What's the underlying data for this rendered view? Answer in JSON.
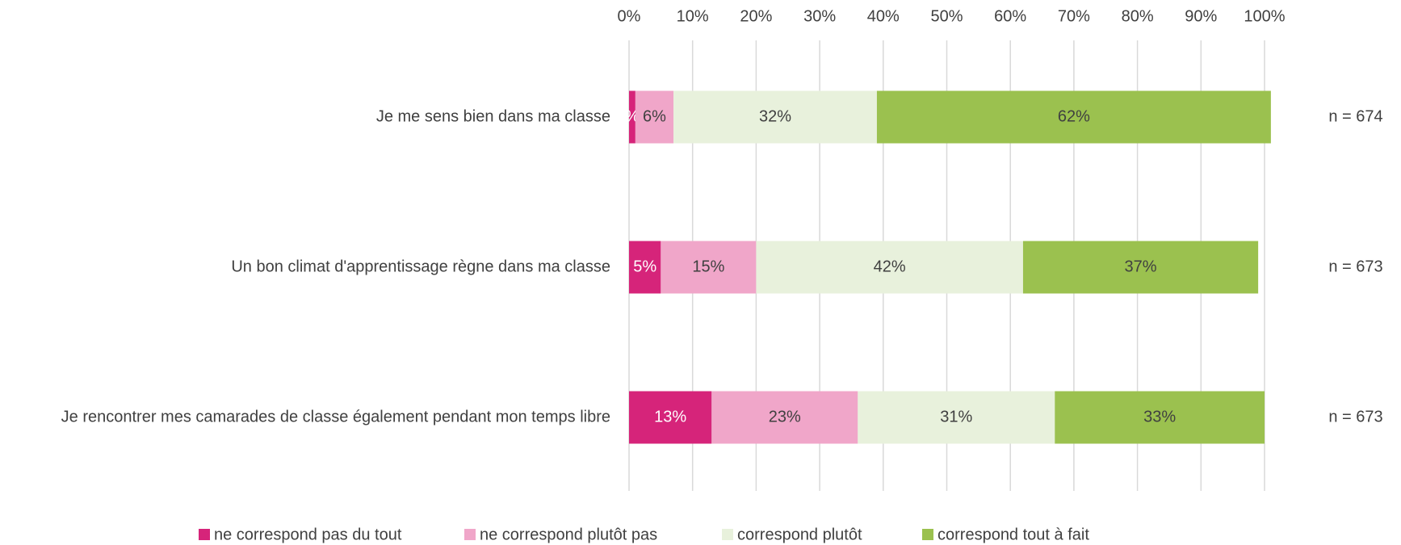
{
  "chart_data": {
    "type": "stacked-bar-horizontal",
    "categories": [
      "Je me sens bien dans ma classe",
      "Un bon climat d'apprentissage règne dans ma classe",
      "Je rencontrer mes camarades de classe également pendant mon temps libre"
    ],
    "series": [
      {
        "name": "ne correspond pas du tout",
        "color": "#d6247a",
        "values": [
          1,
          5,
          13
        ],
        "value_labels": [
          "%",
          "5%",
          "13%"
        ]
      },
      {
        "name": "ne correspond plutôt pas",
        "color": "#f0a6c9",
        "values": [
          6,
          15,
          23
        ],
        "value_labels": [
          "6%",
          "15%",
          "23%"
        ]
      },
      {
        "name": "correspond plutôt",
        "color": "#e8f1dc",
        "values": [
          32,
          42,
          31
        ],
        "value_labels": [
          "32%",
          "42%",
          "31%"
        ]
      },
      {
        "name": "correspond tout à fait",
        "color": "#9bc14f",
        "values": [
          62,
          37,
          33
        ],
        "value_labels": [
          "62%",
          "37%",
          "33%"
        ]
      }
    ],
    "annotations": [
      "n = 674",
      "n = 673",
      "n = 673"
    ],
    "xlim": [
      0,
      100
    ],
    "xticks": [
      {
        "value": 0,
        "label": "0%"
      },
      {
        "value": 10,
        "label": "10%"
      },
      {
        "value": 20,
        "label": "20%"
      },
      {
        "value": 30,
        "label": "30%"
      },
      {
        "value": 40,
        "label": "40%"
      },
      {
        "value": 50,
        "label": "50%"
      },
      {
        "value": 60,
        "label": "60%"
      },
      {
        "value": 70,
        "label": "70%"
      },
      {
        "value": 80,
        "label": "80%"
      },
      {
        "value": 90,
        "label": "90%"
      },
      {
        "value": 100,
        "label": "100%"
      }
    ],
    "grid": true,
    "legend": "bottom"
  }
}
